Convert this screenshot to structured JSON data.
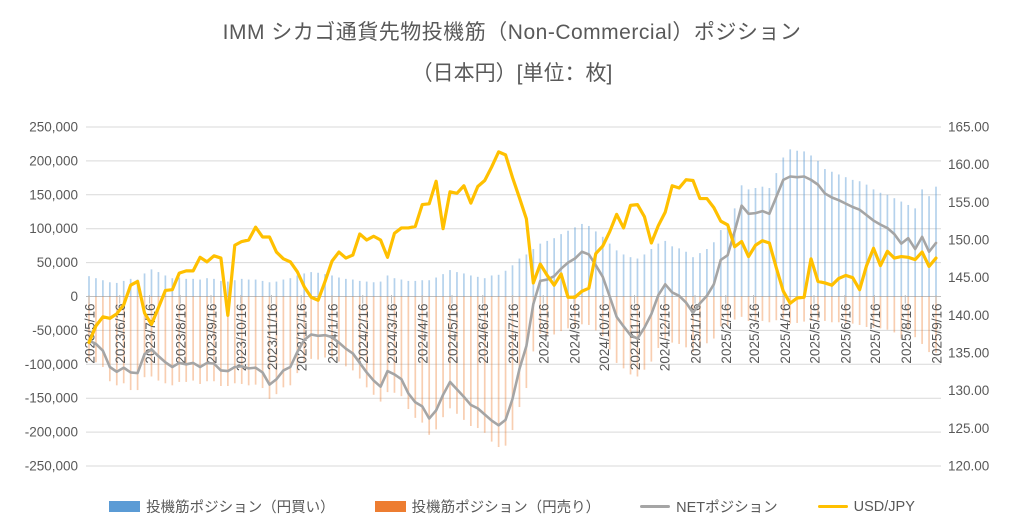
{
  "title": {
    "line1": "IMM シカゴ通貨先物投機筋（Non-Commercial）ポジション",
    "line2": "（日本円）[単位：枚]"
  },
  "axes": {
    "left_tick_labels": [
      "250,000",
      "200,000",
      "150,000",
      "100,000",
      "50,000",
      "0",
      "-50,000",
      "-100,000",
      "-150,000",
      "-200,000",
      "-250,000"
    ],
    "right_tick_labels": [
      "165.00",
      "160.00",
      "155.00",
      "150.00",
      "145.00",
      "140.00",
      "135.00",
      "130.00",
      "125.00",
      "120.00"
    ],
    "x_labels": [
      "2023/5/16",
      "2023/6/16",
      "2023/7/16",
      "2023/8/16",
      "2023/9/16",
      "2023/10/16",
      "2023/11/16",
      "2023/12/16",
      "2024/1/16",
      "2024/2/16",
      "2024/3/16",
      "2024/4/16",
      "2024/5/16",
      "2024/6/16",
      "2024/7/16",
      "2024/8/16",
      "2024/9/16",
      "2024/10/16",
      "2024/11/16",
      "2024/12/16",
      "2025/1/16",
      "2025/2/16",
      "2025/3/16",
      "2025/4/16",
      "2025/5/16",
      "2025/6/16",
      "2025/7/16",
      "2025/8/16",
      "2025/9/16"
    ]
  },
  "legend": [
    {
      "label": "投機筋ポジション（円買い）",
      "swatch": "bar",
      "color": "#5B9BD5"
    },
    {
      "label": "投機筋ポジション（円売り）",
      "swatch": "bar",
      "color": "#ED7D31"
    },
    {
      "label": "NETポジション",
      "swatch": "line",
      "color": "#A5A5A5"
    },
    {
      "label": "USD/JPY",
      "swatch": "line",
      "color": "#FFC000"
    }
  ],
  "colors": {
    "long_bar": "#5B9BD5",
    "short_bar": "#ED7D31",
    "net_line": "#A5A5A5",
    "usdjpy_line": "#FFC000",
    "gridline": "#D9D9D9",
    "axis_line": "#BFBFBF",
    "label_text": "#595959"
  },
  "chart_data": {
    "type": "bar",
    "subtype": "combo-weekly-bars-and-lines",
    "title": "IMM シカゴ通貨先物投機筋（Non-Commercial）ポジション（日本円）[単位：枚]",
    "left_axis": {
      "min": -250000,
      "max": 250000,
      "step": 50000
    },
    "right_axis": {
      "min": 120,
      "max": 165,
      "step": 5
    },
    "grid": true,
    "legend_position": "bottom",
    "x": [
      "2023/5/16",
      "2023/5/23",
      "2023/5/30",
      "2023/6/6",
      "2023/6/13",
      "2023/6/20",
      "2023/6/27",
      "2023/7/4",
      "2023/7/11",
      "2023/7/18",
      "2023/7/25",
      "2023/8/1",
      "2023/8/8",
      "2023/8/15",
      "2023/8/22",
      "2023/8/29",
      "2023/9/5",
      "2023/9/12",
      "2023/9/19",
      "2023/9/26",
      "2023/10/3",
      "2023/10/10",
      "2023/10/17",
      "2023/10/24",
      "2023/10/31",
      "2023/11/7",
      "2023/11/14",
      "2023/11/21",
      "2023/11/28",
      "2023/12/5",
      "2023/12/12",
      "2023/12/19",
      "2023/12/26",
      "2024/1/2",
      "2024/1/9",
      "2024/1/16",
      "2024/1/23",
      "2024/1/30",
      "2024/2/6",
      "2024/2/13",
      "2024/2/20",
      "2024/2/27",
      "2024/3/5",
      "2024/3/12",
      "2024/3/19",
      "2024/3/26",
      "2024/4/2",
      "2024/4/9",
      "2024/4/16",
      "2024/4/23",
      "2024/4/30",
      "2024/5/7",
      "2024/5/14",
      "2024/5/21",
      "2024/5/28",
      "2024/6/4",
      "2024/6/11",
      "2024/6/18",
      "2024/6/25",
      "2024/7/2",
      "2024/7/9",
      "2024/7/16",
      "2024/7/23",
      "2024/7/30",
      "2024/8/6",
      "2024/8/13",
      "2024/8/20",
      "2024/8/27",
      "2024/9/3",
      "2024/9/10",
      "2024/9/17",
      "2024/9/24",
      "2024/10/1",
      "2024/10/8",
      "2024/10/15",
      "2024/10/22",
      "2024/10/29",
      "2024/11/5",
      "2024/11/12",
      "2024/11/19",
      "2024/11/26",
      "2024/12/3",
      "2024/12/10",
      "2024/12/17",
      "2024/12/24",
      "2024/12/31",
      "2025/1/7",
      "2025/1/14",
      "2025/1/21",
      "2025/1/28",
      "2025/2/4",
      "2025/2/11",
      "2025/2/18",
      "2025/2/25",
      "2025/3/4",
      "2025/3/11",
      "2025/3/18",
      "2025/3/25",
      "2025/4/1",
      "2025/4/8",
      "2025/4/15",
      "2025/4/22",
      "2025/4/29",
      "2025/5/6",
      "2025/5/13",
      "2025/5/20",
      "2025/5/27",
      "2025/6/3",
      "2025/6/10",
      "2025/6/17",
      "2025/6/24",
      "2025/7/1",
      "2025/7/8",
      "2025/7/15",
      "2025/7/22",
      "2025/7/29",
      "2025/8/5",
      "2025/8/12",
      "2025/8/19",
      "2025/8/26",
      "2025/9/2",
      "2025/9/9",
      "2025/9/16"
    ],
    "series": [
      {
        "name": "投機筋ポジション（円買い）",
        "type": "bar",
        "axis": "left",
        "color": "#5B9BD5",
        "values": [
          30000,
          27000,
          24000,
          21000,
          20000,
          23000,
          26000,
          25000,
          34000,
          40000,
          36000,
          31000,
          27000,
          28000,
          26000,
          26000,
          25000,
          27000,
          26000,
          23000,
          22000,
          24000,
          26000,
          25000,
          25000,
          23000,
          21000,
          22000,
          25000,
          27000,
          31000,
          34000,
          36000,
          35000,
          33000,
          31000,
          28000,
          26000,
          25000,
          23000,
          22000,
          21000,
          22000,
          31000,
          27000,
          25000,
          23000,
          23000,
          24000,
          24000,
          28000,
          33000,
          39000,
          36000,
          34000,
          31000,
          29000,
          27000,
          31000,
          32000,
          38000,
          46000,
          56000,
          62000,
          70000,
          78000,
          82000,
          86000,
          92000,
          97000,
          102000,
          107000,
          104000,
          96000,
          88000,
          78000,
          68000,
          62000,
          58000,
          56000,
          62000,
          70000,
          78000,
          82000,
          74000,
          71000,
          66000,
          58000,
          64000,
          70000,
          80000,
          98000,
          104000,
          130000,
          164000,
          158000,
          160000,
          162000,
          160000,
          182000,
          205000,
          217000,
          215000,
          214000,
          208000,
          200000,
          188000,
          184000,
          180000,
          176000,
          172000,
          170000,
          165000,
          158000,
          153000,
          150000,
          145000,
          140000,
          135000,
          130000,
          158000,
          148000,
          162000
        ]
      },
      {
        "name": "投機筋ポジション（円売り）",
        "type": "bar",
        "axis": "left",
        "color": "#ED7D31",
        "values": [
          -95000,
          -97000,
          -104000,
          -125000,
          -131000,
          -128000,
          -138000,
          -138000,
          -119000,
          -118000,
          -124000,
          -128000,
          -131000,
          -126000,
          -126000,
          -124000,
          -129000,
          -125000,
          -125000,
          -132000,
          -132000,
          -128000,
          -129000,
          -131000,
          -130000,
          -135000,
          -151000,
          -144000,
          -134000,
          -131000,
          -113000,
          -98000,
          -92000,
          -93000,
          -90000,
          -91000,
          -96000,
          -103000,
          -109000,
          -121000,
          -134000,
          -145000,
          -155000,
          -141000,
          -142000,
          -147000,
          -166000,
          -179000,
          -186000,
          -204000,
          -196000,
          -178000,
          -165000,
          -173000,
          -182000,
          -191000,
          -194000,
          -201000,
          -214000,
          -222000,
          -220000,
          -197000,
          -163000,
          -135000,
          -81000,
          -55000,
          -57000,
          -56000,
          -51000,
          -47000,
          -46000,
          -41000,
          -42000,
          -50000,
          -59000,
          -78000,
          -98000,
          -106000,
          -115000,
          -118000,
          -108000,
          -96000,
          -76000,
          -64000,
          -68000,
          -70000,
          -75000,
          -82000,
          -74000,
          -69000,
          -62000,
          -44000,
          -43000,
          -34000,
          -30000,
          -36000,
          -37000,
          -36000,
          -38000,
          -35000,
          -33000,
          -40000,
          -39000,
          -37000,
          -36000,
          -35000,
          -36000,
          -38000,
          -38000,
          -39000,
          -40000,
          -42000,
          -45000,
          -46000,
          -47000,
          -49000,
          -53000,
          -62000,
          -49000,
          -60000,
          -70000,
          -82000,
          -83000
        ]
      },
      {
        "name": "NETポジション",
        "type": "line",
        "axis": "left",
        "color": "#A5A5A5",
        "values": [
          -65000,
          -70000,
          -80000,
          -104000,
          -111000,
          -105000,
          -112000,
          -113000,
          -85000,
          -78000,
          -88000,
          -97000,
          -104000,
          -98000,
          -100000,
          -98000,
          -104000,
          -98000,
          -99000,
          -109000,
          -110000,
          -104000,
          -103000,
          -106000,
          -105000,
          -112000,
          -130000,
          -122000,
          -109000,
          -104000,
          -82000,
          -64000,
          -56000,
          -58000,
          -57000,
          -60000,
          -68000,
          -77000,
          -84000,
          -98000,
          -112000,
          -124000,
          -133000,
          -110000,
          -115000,
          -122000,
          -143000,
          -156000,
          -162000,
          -180000,
          -168000,
          -145000,
          -126000,
          -137000,
          -148000,
          -160000,
          -165000,
          -174000,
          -183000,
          -190000,
          -182000,
          -151000,
          -107000,
          -73000,
          -11000,
          23000,
          25000,
          30000,
          41000,
          50000,
          56000,
          66000,
          62000,
          46000,
          29000,
          0,
          -30000,
          -44000,
          -57000,
          -62000,
          -46000,
          -26000,
          2000,
          18000,
          6000,
          1000,
          -9000,
          -24000,
          -10000,
          1000,
          18000,
          54000,
          61000,
          96000,
          134000,
          122000,
          123000,
          126000,
          122000,
          147000,
          172000,
          177000,
          176000,
          177000,
          172000,
          165000,
          152000,
          146000,
          142000,
          137000,
          132000,
          128000,
          120000,
          112000,
          106000,
          101000,
          92000,
          78000,
          86000,
          70000,
          88000,
          66000,
          79000
        ]
      },
      {
        "name": "USD/JPY",
        "type": "line",
        "axis": "right",
        "color": "#FFC000",
        "values": [
          136.4,
          138.6,
          139.8,
          139.6,
          140.2,
          141.4,
          144.0,
          144.5,
          140.3,
          138.8,
          141.0,
          143.3,
          143.4,
          145.6,
          145.9,
          145.9,
          147.7,
          147.1,
          147.9,
          147.6,
          140.0,
          149.3,
          149.8,
          150.0,
          151.7,
          150.4,
          150.4,
          148.4,
          147.5,
          147.1,
          145.8,
          143.8,
          142.4,
          142.0,
          144.5,
          147.2,
          148.4,
          147.6,
          148.0,
          150.8,
          150.0,
          150.5,
          150.0,
          147.7,
          150.9,
          151.6,
          151.6,
          151.8,
          154.7,
          154.8,
          157.8,
          151.5,
          156.4,
          156.2,
          157.2,
          154.9,
          157.1,
          157.9,
          159.7,
          161.7,
          161.3,
          158.3,
          155.6,
          152.8,
          144.3,
          146.8,
          145.3,
          144.0,
          145.5,
          142.4,
          142.4,
          143.2,
          143.6,
          148.2,
          149.2,
          151.1,
          153.4,
          151.6,
          154.6,
          154.7,
          153.1,
          149.6,
          151.9,
          153.7,
          157.2,
          156.9,
          158.0,
          157.9,
          155.5,
          155.5,
          154.3,
          152.5,
          152.0,
          149.1,
          149.8,
          147.8,
          149.3,
          149.9,
          149.6,
          146.3,
          143.2,
          141.6,
          142.3,
          142.4,
          147.5,
          144.5,
          144.3,
          144.0,
          144.9,
          145.3,
          145.0,
          143.4,
          146.6,
          148.9,
          146.6,
          148.5,
          147.6,
          147.8,
          147.7,
          147.4,
          148.4,
          146.5,
          147.6
        ]
      }
    ]
  }
}
